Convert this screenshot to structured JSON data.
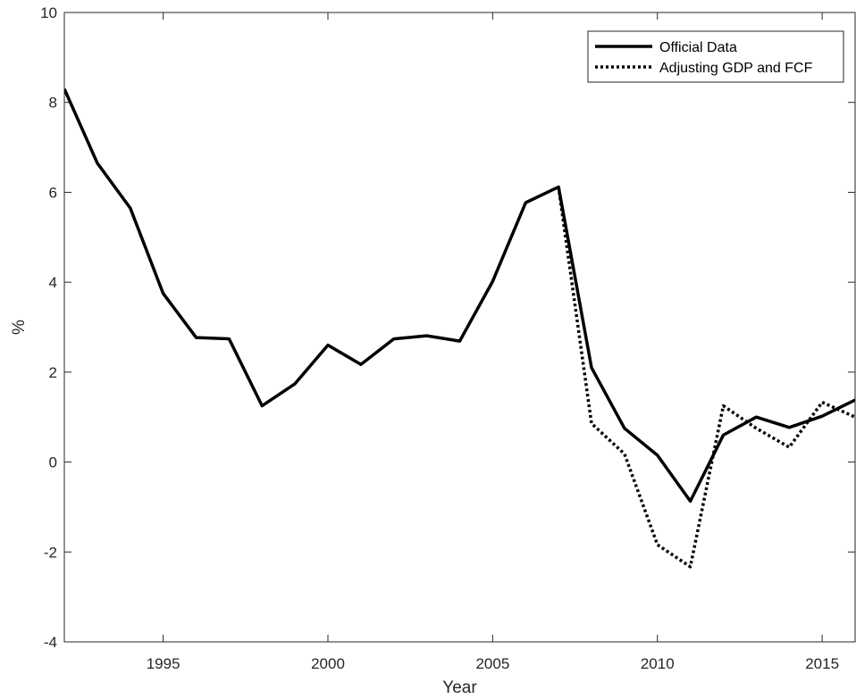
{
  "chart_data": {
    "type": "line",
    "title": "",
    "xlabel": "Year",
    "ylabel": "%",
    "xlim": [
      1992,
      2016
    ],
    "ylim": [
      -4,
      10
    ],
    "xticks": [
      1995,
      2000,
      2005,
      2010,
      2015
    ],
    "yticks": [
      -4,
      -2,
      0,
      2,
      4,
      6,
      8,
      10
    ],
    "grid": false,
    "legend_position": "top-right",
    "series": [
      {
        "name": "Official Data",
        "style": "solid",
        "color": "#000000",
        "x": [
          1992,
          1993,
          1994,
          1995,
          1996,
          1997,
          1998,
          1999,
          2000,
          2001,
          2002,
          2003,
          2004,
          2005,
          2006,
          2007,
          2008,
          2009,
          2010,
          2011,
          2012,
          2013,
          2014,
          2015,
          2016
        ],
        "y": [
          8.3,
          6.65,
          5.65,
          3.75,
          2.77,
          2.74,
          1.25,
          1.74,
          2.6,
          2.17,
          2.74,
          2.81,
          2.69,
          4.02,
          5.77,
          6.12,
          2.1,
          0.75,
          0.15,
          -0.87,
          0.6,
          1.0,
          0.77,
          1.02,
          1.38
        ]
      },
      {
        "name": "Adjusting GDP and FCF",
        "style": "dotted",
        "color": "#000000",
        "x": [
          2007,
          2008,
          2009,
          2010,
          2011,
          2012,
          2013,
          2014,
          2015,
          2016
        ],
        "y": [
          6.12,
          0.86,
          0.18,
          -1.84,
          -2.33,
          1.25,
          0.75,
          0.33,
          1.33,
          1.0
        ]
      }
    ]
  }
}
